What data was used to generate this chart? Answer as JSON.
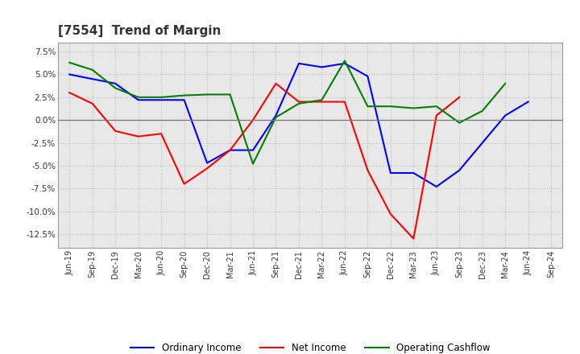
{
  "title": "[7554]  Trend of Margin",
  "x_labels": [
    "Jun-19",
    "Sep-19",
    "Dec-19",
    "Mar-20",
    "Jun-20",
    "Sep-20",
    "Dec-20",
    "Mar-21",
    "Jun-21",
    "Sep-21",
    "Dec-21",
    "Mar-22",
    "Jun-22",
    "Sep-22",
    "Dec-22",
    "Mar-23",
    "Jun-23",
    "Sep-23",
    "Dec-23",
    "Mar-24",
    "Jun-24",
    "Sep-24"
  ],
  "ordinary_income": [
    5.0,
    4.5,
    4.0,
    2.2,
    2.2,
    2.2,
    -4.7,
    -3.3,
    -3.3,
    0.5,
    6.2,
    5.8,
    6.2,
    4.8,
    -5.8,
    -5.8,
    -7.3,
    -5.5,
    -2.5,
    0.5,
    2.0,
    null
  ],
  "net_income": [
    3.0,
    1.8,
    -1.2,
    -1.8,
    -1.5,
    -7.0,
    -5.3,
    -3.3,
    0.0,
    4.0,
    2.0,
    2.0,
    2.0,
    -5.5,
    -10.3,
    -13.0,
    0.5,
    2.5,
    null,
    null,
    null,
    null
  ],
  "operating_cashflow": [
    6.3,
    5.5,
    3.5,
    2.5,
    2.5,
    2.7,
    2.8,
    2.8,
    -4.8,
    0.3,
    1.8,
    2.2,
    6.5,
    1.5,
    1.5,
    1.3,
    1.5,
    -0.3,
    1.0,
    4.0,
    null,
    null
  ],
  "ylim": [
    -14.0,
    8.5
  ],
  "yticks": [
    -12.5,
    -10.0,
    -7.5,
    -5.0,
    -2.5,
    0.0,
    2.5,
    5.0,
    7.5
  ],
  "line_colors": {
    "ordinary_income": "#0000FF",
    "net_income": "#FF0000",
    "operating_cashflow": "#008000"
  },
  "legend_labels": [
    "Ordinary Income",
    "Net Income",
    "Operating Cashflow"
  ],
  "bg_color": "#FFFFFF",
  "plot_bg_color": "#E8E8E8",
  "grid_color": "#BBBBBB",
  "title_color": "#333333"
}
